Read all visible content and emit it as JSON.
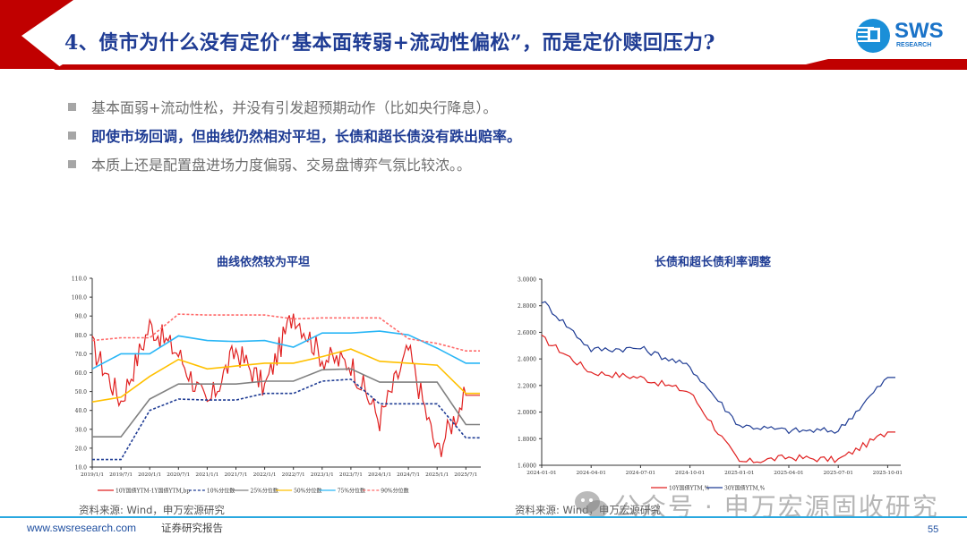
{
  "slide": {
    "title": "4、债市为什么没有定价“基本面转弱+流动性偏松”，而是定价赎回压力?",
    "logo": {
      "main": "SWS",
      "sub": "RESEARCH"
    },
    "bullets": [
      {
        "text": "基本面弱+流动性松，并没有引发超预期动作（比如央行降息）。",
        "style": "gray"
      },
      {
        "text": "即使市场回调，但曲线仍然相对平坦，长债和超长债没有跌出赔率。",
        "style": "blue"
      },
      {
        "text": "本质上还是配置盘进场力度偏弱、交易盘博弈气氛比较浓。。",
        "style": "gray"
      }
    ],
    "colors": {
      "brand_red": "#c00000",
      "title_blue": "#1f3c94",
      "footer_line": "#29a8e0"
    }
  },
  "left_chart": {
    "title": "曲线依然较为平坦",
    "source": "资料来源: Wind，申万宏源研究"
  },
  "right_chart": {
    "title": "长债和超长债利率调整",
    "source": "资料来源: Wind，申万宏源研究"
  },
  "footer": {
    "url": "www.swsresearch.com",
    "label": "证券研究报告",
    "page_number": "55",
    "watermark": "公众号 · 申万宏源固收研究"
  },
  "chart_data": [
    {
      "type": "line",
      "title": "曲线依然较为平坦",
      "xlabel": "",
      "ylabel": "",
      "ylim": [
        10,
        110
      ],
      "yticks": [
        "10.0",
        "20.0",
        "30.0",
        "40.0",
        "50.0",
        "60.0",
        "70.0",
        "80.0",
        "90.0",
        "100.0",
        "110.0"
      ],
      "x": [
        "2019/1/1",
        "2019/7/1",
        "2020/1/1",
        "2020/7/1",
        "2021/1/1",
        "2021/7/1",
        "2022/1/1",
        "2022/7/1",
        "2023/1/1",
        "2023/7/1",
        "2024/1/1",
        "2024/7/1",
        "2025/1/1",
        "2025/7/1"
      ],
      "grid": false,
      "legend_position": "bottom",
      "series": [
        {
          "name": "10Y国债YTM-1Y国债YTM,bp",
          "color": "#e02020",
          "style": "solid",
          "values": [
            74,
            45,
            85,
            70,
            42,
            72,
            52,
            92,
            68,
            65,
            35,
            72,
            18,
            48
          ]
        },
        {
          "name": "10%分位数",
          "color": "#1f3c94",
          "style": "dashed",
          "values": [
            14,
            14,
            40,
            46,
            45.5,
            45.5,
            49,
            49,
            55.5,
            56.5,
            43.5,
            43.5,
            43.5,
            25.5
          ]
        },
        {
          "name": "25%分位数",
          "color": "#808080",
          "style": "solid",
          "values": [
            26,
            26,
            46,
            54,
            54,
            54,
            55.5,
            55.5,
            61.5,
            62,
            55,
            55,
            55,
            32.5
          ]
        },
        {
          "name": "50%分位数",
          "color": "#ffc000",
          "style": "solid",
          "values": [
            44.5,
            47,
            58,
            67,
            62,
            63.5,
            65,
            65,
            68.5,
            72.5,
            66,
            65,
            64,
            49
          ]
        },
        {
          "name": "75%分位数",
          "color": "#29b6f6",
          "style": "solid",
          "values": [
            62,
            70,
            70,
            79.5,
            77,
            76.5,
            77,
            73.5,
            81,
            81,
            82,
            80,
            73,
            65
          ]
        },
        {
          "name": "90%分位数",
          "color": "#ff6b6b",
          "style": "dashed",
          "values": [
            77,
            78.5,
            78.5,
            91,
            90.5,
            90.5,
            90.5,
            88.5,
            89,
            89,
            89,
            78,
            75.5,
            71.5
          ]
        }
      ]
    },
    {
      "type": "line",
      "title": "长债和超长债利率调整",
      "xlabel": "",
      "ylabel": "",
      "ylim": [
        1.6,
        3.0
      ],
      "yticks": [
        "1.6000",
        "1.8000",
        "2.0000",
        "2.2000",
        "2.4000",
        "2.6000",
        "2.8000",
        "3.0000"
      ],
      "x": [
        "2024-01-01",
        "2024-04-01",
        "2024-07-01",
        "2024-10-01",
        "2025-01-01",
        "2025-04-01",
        "2025-07-01",
        "2025-10-01"
      ],
      "grid": false,
      "legend_position": "bottom",
      "series": [
        {
          "name": "10Y国债YTM,%",
          "color": "#e02020",
          "style": "solid",
          "values": [
            2.56,
            2.3,
            2.26,
            2.15,
            1.62,
            1.66,
            1.64,
            1.85
          ]
        },
        {
          "name": "30Y国债YTM,%",
          "color": "#1f3c94",
          "style": "solid",
          "values": [
            2.84,
            2.47,
            2.48,
            2.34,
            1.9,
            1.86,
            1.86,
            2.26
          ]
        }
      ]
    }
  ]
}
